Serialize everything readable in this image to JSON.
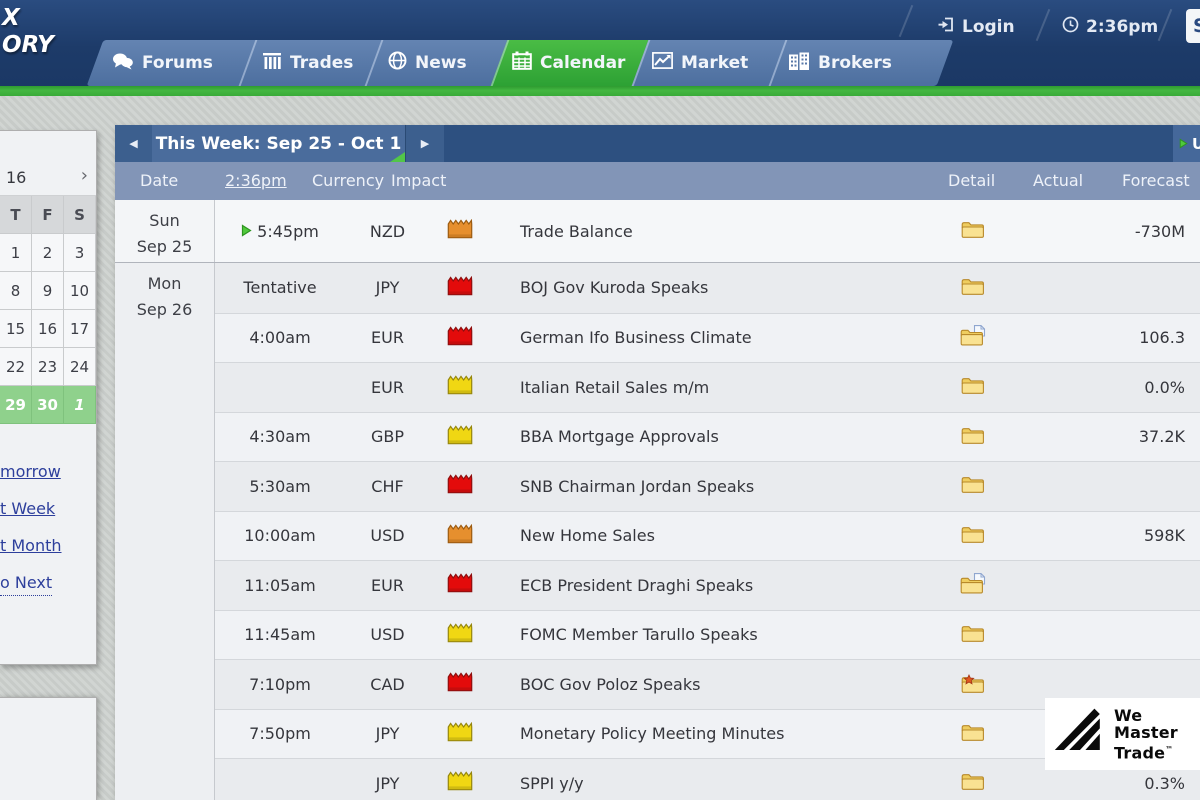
{
  "topbar": {
    "logo": {
      "line1": "X",
      "line2": "ORY"
    },
    "login_label": "Login",
    "clock_time": "2:36pm",
    "search_fragment": "S",
    "tabs": [
      {
        "label": "Forums",
        "icon": "forums-icon",
        "active": false
      },
      {
        "label": "Trades",
        "icon": "trades-icon",
        "active": false
      },
      {
        "label": "News",
        "icon": "news-icon",
        "active": false
      },
      {
        "label": "Calendar",
        "icon": "calendar-icon",
        "active": true
      },
      {
        "label": "Market",
        "icon": "market-icon",
        "active": false
      },
      {
        "label": "Brokers",
        "icon": "brokers-icon",
        "active": false
      }
    ]
  },
  "minicalendar": {
    "month_label_fragment": "16",
    "next_arrow": "›",
    "weekdays": [
      "T",
      "F",
      "S"
    ],
    "weeks": [
      [
        "1",
        "2",
        "3"
      ],
      [
        "8",
        "9",
        "10"
      ],
      [
        "15",
        "16",
        "17"
      ],
      [
        "22",
        "23",
        "24"
      ]
    ],
    "selected_week": {
      "days": [
        "29",
        "30"
      ],
      "next_month_day": "1"
    },
    "links": [
      "morrow",
      "t Week",
      "t Month"
    ],
    "jump_link": "o Next"
  },
  "calendar": {
    "nav": {
      "prev": "◀",
      "title": "This Week: Sep 25 - Oct 1",
      "next": "▶"
    },
    "up_next_fragment": "U",
    "columns": {
      "date": "Date",
      "time": "2:36pm",
      "currency": "Currency",
      "impact": "Impact",
      "detail": "Detail",
      "actual": "Actual",
      "forecast": "Forecast"
    },
    "groups": [
      {
        "day": "Sun",
        "date": "Sep 25",
        "key": "sun",
        "rows": [
          {
            "time": "5:45pm",
            "live": true,
            "currency": "NZD",
            "impact": "orange",
            "event": "Trade Balance",
            "detail": "folder",
            "actual": "",
            "forecast": "-730M"
          }
        ]
      },
      {
        "day": "Mon",
        "date": "Sep 26",
        "key": "mon",
        "rows": [
          {
            "time": "Tentative",
            "currency": "JPY",
            "impact": "red",
            "event": "BOJ Gov Kuroda Speaks",
            "detail": "folder",
            "actual": "",
            "forecast": ""
          },
          {
            "time": "4:00am",
            "currency": "EUR",
            "impact": "red",
            "event": "German Ifo Business Climate",
            "detail": "folder-doc",
            "actual": "",
            "forecast": "106.3"
          },
          {
            "time": "",
            "currency": "EUR",
            "impact": "yellow",
            "event": "Italian Retail Sales m/m",
            "detail": "folder",
            "actual": "",
            "forecast": "0.0%"
          },
          {
            "time": "4:30am",
            "currency": "GBP",
            "impact": "yellow",
            "event": "BBA Mortgage Approvals",
            "detail": "folder",
            "actual": "",
            "forecast": "37.2K"
          },
          {
            "time": "5:30am",
            "currency": "CHF",
            "impact": "red",
            "event": "SNB Chairman Jordan Speaks",
            "detail": "folder",
            "actual": "",
            "forecast": ""
          },
          {
            "time": "10:00am",
            "currency": "USD",
            "impact": "orange",
            "event": "New Home Sales",
            "detail": "folder",
            "actual": "",
            "forecast": "598K"
          },
          {
            "time": "11:05am",
            "currency": "EUR",
            "impact": "red",
            "event": "ECB President Draghi Speaks",
            "detail": "folder-doc",
            "actual": "",
            "forecast": ""
          },
          {
            "time": "11:45am",
            "currency": "USD",
            "impact": "yellow",
            "event": "FOMC Member Tarullo Speaks",
            "detail": "folder",
            "actual": "",
            "forecast": ""
          },
          {
            "time": "7:10pm",
            "currency": "CAD",
            "impact": "red",
            "event": "BOC Gov Poloz Speaks",
            "detail": "folder-star",
            "actual": "",
            "forecast": ""
          },
          {
            "time": "7:50pm",
            "currency": "JPY",
            "impact": "yellow",
            "event": "Monetary Policy Meeting Minutes",
            "detail": "folder",
            "actual": "",
            "forecast": ""
          },
          {
            "time": "",
            "currency": "JPY",
            "impact": "yellow",
            "event": "SPPI y/y",
            "detail": "folder",
            "actual": "",
            "forecast": "0.3%"
          }
        ]
      }
    ]
  },
  "watermark": {
    "lines": [
      "We",
      "Master",
      "Trade"
    ],
    "tm": "™"
  },
  "colors": {
    "impact_red": "#e30b0b",
    "impact_orange": "#e68f2e",
    "impact_yellow": "#f0d713",
    "accent_green": "#3fae3f",
    "nav_blue": "#1d3b69",
    "tab_blue": "#5878a8"
  }
}
